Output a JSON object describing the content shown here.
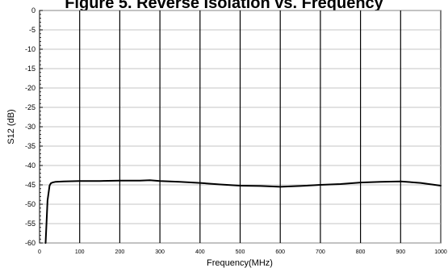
{
  "chart_data": {
    "type": "line",
    "title": "Figure 5.  Reverse Isolation vs. Frequency",
    "xlabel": "Frequency(MHz)",
    "ylabel": "S12 (dB)",
    "xlim": [
      0,
      1000
    ],
    "ylim": [
      -60,
      0
    ],
    "x_ticks": [
      0,
      100,
      200,
      300,
      400,
      500,
      600,
      700,
      800,
      900,
      1000
    ],
    "x_tick_labels": [
      "0",
      "100",
      "200",
      "300",
      "400",
      "500",
      "600",
      "700",
      "800",
      "900",
      "1000"
    ],
    "y_ticks": [
      0,
      -5,
      -10,
      -15,
      -20,
      -25,
      -30,
      -35,
      -40,
      -45,
      -50,
      -55,
      -60
    ],
    "y_tick_labels": [
      "0",
      "-5",
      "-10",
      "-15",
      "-20",
      "-25",
      "-30",
      "-35",
      "-40",
      "-45",
      "-50",
      "-55",
      "-60"
    ],
    "grid": "on",
    "legend": "none",
    "series": [
      {
        "color": "#000000",
        "x": [
          15,
          20,
          25,
          28,
          32,
          40,
          60,
          100,
          150,
          200,
          250,
          275,
          300,
          350,
          400,
          450,
          500,
          550,
          600,
          650,
          700,
          750,
          800,
          850,
          900,
          950,
          1000
        ],
        "y": [
          -60,
          -49,
          -45.2,
          -44.6,
          -44.4,
          -44.2,
          -44.1,
          -44.0,
          -44.0,
          -43.9,
          -43.9,
          -43.8,
          -44.0,
          -44.2,
          -44.5,
          -44.9,
          -45.2,
          -45.3,
          -45.5,
          -45.3,
          -45.0,
          -44.8,
          -44.4,
          -44.2,
          -44.1,
          -44.5,
          -45.2
        ]
      }
    ]
  }
}
